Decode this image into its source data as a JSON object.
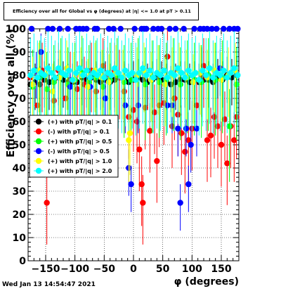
{
  "title": "Efficiency over all for Global vs φ (degrees) at |η| <= 1.0 at pT > 0.11",
  "footer": "Wed Jan 13 14:54:47 2021",
  "chart_data": {
    "type": "scatter",
    "xlabel": "φ (degrees)",
    "ylabel": "Efficiency over all (%)",
    "xlim": [
      -180,
      180
    ],
    "ylim": [
      0,
      100
    ],
    "xticks": [
      -150,
      -100,
      -50,
      0,
      50,
      100,
      150
    ],
    "yticks": [
      0,
      10,
      20,
      30,
      40,
      50,
      60,
      70,
      80,
      90,
      100
    ],
    "grid": true,
    "legend_position": "left-center",
    "series": [
      {
        "name": "(+) with pT/|q| > 0.1",
        "color": "#000000",
        "points": [
          [
            -176,
            76
          ],
          [
            -168,
            77
          ],
          [
            -160,
            76
          ],
          [
            -152,
            78
          ],
          [
            -144,
            77
          ],
          [
            -136,
            78
          ],
          [
            -128,
            79
          ],
          [
            -120,
            78
          ],
          [
            -112,
            77
          ],
          [
            -104,
            77
          ],
          [
            -96,
            77
          ],
          [
            -88,
            79
          ],
          [
            -80,
            78
          ],
          [
            -72,
            79
          ],
          [
            -64,
            78
          ],
          [
            -56,
            77
          ],
          [
            -48,
            78
          ],
          [
            -40,
            77
          ],
          [
            -32,
            78
          ],
          [
            -24,
            79
          ],
          [
            -16,
            78
          ],
          [
            -8,
            77
          ],
          [
            0,
            78
          ],
          [
            8,
            79
          ],
          [
            16,
            78
          ],
          [
            24,
            77
          ],
          [
            32,
            78
          ],
          [
            40,
            79
          ],
          [
            48,
            78
          ],
          [
            56,
            77
          ],
          [
            64,
            76
          ],
          [
            72,
            77
          ],
          [
            80,
            78
          ],
          [
            88,
            78
          ],
          [
            96,
            77
          ],
          [
            104,
            78
          ],
          [
            112,
            77
          ],
          [
            120,
            78
          ],
          [
            128,
            78
          ],
          [
            136,
            77
          ],
          [
            144,
            79
          ],
          [
            152,
            78
          ],
          [
            160,
            80
          ],
          [
            168,
            79
          ],
          [
            176,
            80
          ]
        ]
      },
      {
        "name": "(-) with pT/|q| > 0.1",
        "color": "#ff0000",
        "points": [
          [
            -176,
            79
          ],
          [
            -164,
            67
          ],
          [
            -156,
            82
          ],
          [
            -148,
            25
          ],
          [
            -136,
            69
          ],
          [
            -128,
            82
          ],
          [
            -116,
            70
          ],
          [
            -108,
            78
          ],
          [
            -96,
            74
          ],
          [
            -84,
            76
          ],
          [
            -72,
            82
          ],
          [
            -64,
            73
          ],
          [
            -52,
            84
          ],
          [
            -44,
            80
          ],
          [
            -32,
            82
          ],
          [
            -24,
            79
          ],
          [
            -16,
            73
          ],
          [
            -8,
            62
          ],
          [
            0,
            65
          ],
          [
            6,
            60
          ],
          [
            10,
            48
          ],
          [
            14,
            33
          ],
          [
            16,
            25
          ],
          [
            20,
            66
          ],
          [
            28,
            56
          ],
          [
            36,
            64
          ],
          [
            40,
            43
          ],
          [
            44,
            67
          ],
          [
            52,
            68
          ],
          [
            58,
            88
          ],
          [
            66,
            58
          ],
          [
            70,
            70
          ],
          [
            76,
            63
          ],
          [
            82,
            55
          ],
          [
            88,
            47
          ],
          [
            94,
            52
          ],
          [
            100,
            57
          ],
          [
            108,
            67
          ],
          [
            116,
            80
          ],
          [
            120,
            84
          ],
          [
            126,
            52
          ],
          [
            132,
            54
          ],
          [
            138,
            62
          ],
          [
            144,
            58
          ],
          [
            150,
            50
          ],
          [
            156,
            61
          ],
          [
            160,
            42
          ],
          [
            166,
            58
          ],
          [
            172,
            52
          ],
          [
            176,
            62
          ]
        ]
      },
      {
        "name": "(+) with pT/|q| > 0.5",
        "color": "#00ff00",
        "points": [
          [
            -172,
            75
          ],
          [
            -160,
            79
          ],
          [
            -148,
            74
          ],
          [
            -136,
            77
          ],
          [
            -124,
            80
          ],
          [
            -112,
            76
          ],
          [
            -100,
            78
          ],
          [
            -88,
            81
          ],
          [
            -76,
            77
          ],
          [
            -64,
            79
          ],
          [
            -52,
            75
          ],
          [
            -40,
            78
          ],
          [
            -28,
            80
          ],
          [
            -16,
            77
          ],
          [
            -4,
            78
          ],
          [
            8,
            80
          ],
          [
            20,
            76
          ],
          [
            32,
            79
          ],
          [
            44,
            77
          ],
          [
            56,
            78
          ],
          [
            68,
            80
          ],
          [
            80,
            76
          ],
          [
            92,
            79
          ],
          [
            104,
            78
          ],
          [
            116,
            77
          ],
          [
            128,
            80
          ],
          [
            140,
            78
          ],
          [
            152,
            79
          ],
          [
            164,
            58
          ],
          [
            176,
            76
          ]
        ]
      },
      {
        "name": "(-) with pT/|q| > 0.5",
        "color": "#0000ff",
        "points": [
          [
            -174,
            100
          ],
          [
            -166,
            82
          ],
          [
            -158,
            90
          ],
          [
            -146,
            100
          ],
          [
            -138,
            100
          ],
          [
            -126,
            100
          ],
          [
            -112,
            100
          ],
          [
            -108,
            75
          ],
          [
            -98,
            100
          ],
          [
            -92,
            100
          ],
          [
            -86,
            100
          ],
          [
            -80,
            100
          ],
          [
            -74,
            75
          ],
          [
            -66,
            100
          ],
          [
            -62,
            100
          ],
          [
            -56,
            82
          ],
          [
            -48,
            70
          ],
          [
            -42,
            100
          ],
          [
            -34,
            100
          ],
          [
            -22,
            100
          ],
          [
            -14,
            67
          ],
          [
            -8,
            40
          ],
          [
            -4,
            33
          ],
          [
            2,
            100
          ],
          [
            8,
            67
          ],
          [
            14,
            100
          ],
          [
            18,
            100
          ],
          [
            22,
            100
          ],
          [
            34,
            100
          ],
          [
            42,
            100
          ],
          [
            48,
            100
          ],
          [
            58,
            67
          ],
          [
            62,
            100
          ],
          [
            66,
            67
          ],
          [
            72,
            100
          ],
          [
            76,
            57
          ],
          [
            80,
            25
          ],
          [
            86,
            100
          ],
          [
            90,
            57
          ],
          [
            94,
            33
          ],
          [
            98,
            50
          ],
          [
            104,
            100
          ],
          [
            108,
            57
          ],
          [
            114,
            100
          ],
          [
            120,
            100
          ],
          [
            126,
            100
          ],
          [
            134,
            100
          ],
          [
            142,
            100
          ],
          [
            148,
            83
          ],
          [
            154,
            100
          ],
          [
            164,
            100
          ],
          [
            172,
            100
          ],
          [
            178,
            100
          ]
        ]
      },
      {
        "name": "(+) with pT/|q| > 1.0",
        "color": "#ffff00",
        "points": [
          [
            -172,
            76
          ],
          [
            -162,
            82
          ],
          [
            -150,
            80
          ],
          [
            -138,
            73
          ],
          [
            -126,
            79
          ],
          [
            -114,
            83
          ],
          [
            -102,
            78
          ],
          [
            -90,
            80
          ],
          [
            -78,
            75
          ],
          [
            -66,
            82
          ],
          [
            -54,
            79
          ],
          [
            -42,
            77
          ],
          [
            -30,
            81
          ],
          [
            -18,
            79
          ],
          [
            -8,
            52
          ],
          [
            -6,
            55
          ],
          [
            6,
            80
          ],
          [
            18,
            82
          ],
          [
            30,
            78
          ],
          [
            42,
            81
          ],
          [
            54,
            76
          ],
          [
            66,
            80
          ],
          [
            78,
            82
          ],
          [
            90,
            79
          ],
          [
            102,
            77
          ],
          [
            114,
            81
          ],
          [
            126,
            79
          ],
          [
            138,
            82
          ],
          [
            150,
            78
          ],
          [
            162,
            80
          ],
          [
            174,
            82
          ]
        ]
      },
      {
        "name": "(+) with pT/|q| > 2.0",
        "color": "#00ffff",
        "points": [
          [
            -176,
            80
          ],
          [
            -170,
            82
          ],
          [
            -164,
            79
          ],
          [
            -158,
            81
          ],
          [
            -152,
            80
          ],
          [
            -146,
            83
          ],
          [
            -140,
            81
          ],
          [
            -134,
            79
          ],
          [
            -128,
            83
          ],
          [
            -122,
            81
          ],
          [
            -116,
            80
          ],
          [
            -110,
            82
          ],
          [
            -104,
            78
          ],
          [
            -98,
            81
          ],
          [
            -92,
            83
          ],
          [
            -86,
            80
          ],
          [
            -80,
            82
          ],
          [
            -74,
            79
          ],
          [
            -68,
            81
          ],
          [
            -62,
            80
          ],
          [
            -56,
            82
          ],
          [
            -50,
            79
          ],
          [
            -44,
            81
          ],
          [
            -38,
            80
          ],
          [
            -32,
            83
          ],
          [
            -26,
            81
          ],
          [
            -20,
            79
          ],
          [
            -14,
            82
          ],
          [
            -8,
            80
          ],
          [
            -2,
            81
          ],
          [
            4,
            78
          ],
          [
            10,
            81
          ],
          [
            16,
            83
          ],
          [
            22,
            80
          ],
          [
            28,
            82
          ],
          [
            34,
            79
          ],
          [
            40,
            81
          ],
          [
            46,
            80
          ],
          [
            52,
            82
          ],
          [
            58,
            79
          ],
          [
            64,
            81
          ],
          [
            70,
            80
          ],
          [
            76,
            83
          ],
          [
            82,
            81
          ],
          [
            88,
            79
          ],
          [
            94,
            82
          ],
          [
            100,
            80
          ],
          [
            106,
            81
          ],
          [
            112,
            78
          ],
          [
            118,
            82
          ],
          [
            124,
            80
          ],
          [
            130,
            83
          ],
          [
            136,
            79
          ],
          [
            142,
            81
          ],
          [
            148,
            80
          ],
          [
            154,
            82
          ],
          [
            160,
            79
          ],
          [
            166,
            81
          ],
          [
            172,
            83
          ],
          [
            178,
            80
          ]
        ]
      }
    ]
  }
}
